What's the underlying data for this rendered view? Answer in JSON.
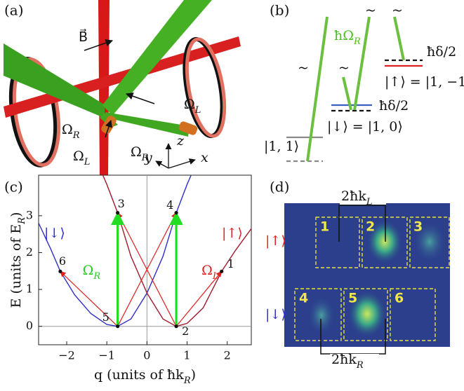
{
  "panel_a": {
    "label": "(a)",
    "field": "B⃗",
    "beams": [
      {
        "base": "Ω",
        "sub": "R"
      },
      {
        "base": "Ω",
        "sub": "R"
      },
      {
        "base": "Ω",
        "sub": "L"
      },
      {
        "base": "Ω",
        "sub": "L"
      }
    ],
    "axes": [
      "z",
      "y",
      "x"
    ]
  },
  "panel_b": {
    "label": "(b)",
    "coupling": {
      "base": "ħΩ",
      "sub": "R"
    },
    "detuning_up": "ħδ/2",
    "detuning_down": "ħδ/2",
    "state_up": "|↑⟩ = |1, −1⟩",
    "state_down": "|↓⟩ = |1, 0⟩",
    "state_other": "|1, 1⟩",
    "tildes": [
      "~",
      "~",
      "~",
      "~"
    ]
  },
  "chart_data": {
    "type": "line",
    "panel_label": "(c)",
    "xlabel": {
      "base": "q (units of ħk",
      "sub": "R",
      "end": ")"
    },
    "ylabel": {
      "base": "E (units of E",
      "sub": "R",
      "end": ")"
    },
    "xlim": [
      -2.7,
      2.6
    ],
    "ylim": [
      -0.5,
      4.1
    ],
    "xticks": [
      {
        "value": -2,
        "label": "−2"
      },
      {
        "value": -1,
        "label": "−1"
      },
      0,
      1,
      2
    ],
    "yticks": [
      0,
      1,
      2,
      3
    ],
    "series": [
      {
        "name": "|↓⟩",
        "color": "#3030c8",
        "x": [
          -2.7,
          -2.4,
          -2.16,
          -1.8,
          -1.4,
          -1.0,
          -0.73,
          -0.4,
          0,
          0.4,
          0.73,
          1.0,
          1.1
        ],
        "values": [
          2.8,
          2.1,
          1.49,
          0.85,
          0.35,
          0.05,
          0,
          0.2,
          0.9,
          1.9,
          3.08,
          3.85,
          4.1
        ]
      },
      {
        "name": "|↑⟩",
        "color": "#a01c2c",
        "x": [
          -1.1,
          -1.0,
          -0.73,
          -0.4,
          0,
          0.4,
          0.73,
          1.0,
          1.4,
          1.86,
          2.2,
          2.6
        ],
        "values": [
          4.1,
          3.85,
          3.08,
          1.9,
          0.9,
          0.2,
          0,
          0.08,
          0.5,
          1.49,
          2.05,
          2.65
        ]
      }
    ],
    "points": [
      {
        "label": "1",
        "x": 1.86,
        "y": 1.49
      },
      {
        "label": "2",
        "x": 0.73,
        "y": 0
      },
      {
        "label": "3",
        "x": -0.73,
        "y": 3.08
      },
      {
        "label": "4",
        "x": 0.73,
        "y": 3.08
      },
      {
        "label": "5",
        "x": -0.73,
        "y": 0
      },
      {
        "label": "6",
        "x": -2.16,
        "y": 1.49
      }
    ],
    "coupling_labels": [
      {
        "base": "Ω",
        "sub": "R"
      },
      {
        "base": "Ω",
        "sub": "L"
      }
    ]
  },
  "panel_d": {
    "label": "(d)",
    "row_labels": [
      "|↑⟩",
      "|↓⟩"
    ],
    "boxes": [
      "1",
      "2",
      "3",
      "4",
      "5",
      "6"
    ],
    "spacing_top": {
      "base": "2ħk",
      "sub": "L"
    },
    "spacing_bottom": {
      "base": "2ħk",
      "sub": "R"
    }
  }
}
